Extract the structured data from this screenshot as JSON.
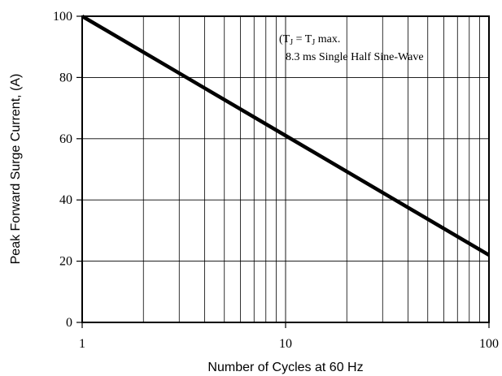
{
  "chart_data": {
    "type": "line",
    "title": "",
    "xlabel": "Number of Cycles at 60 Hz",
    "ylabel": "Peak Forward Surge Current, (A)",
    "x_scale": "log",
    "xlim": [
      1,
      100
    ],
    "ylim": [
      0,
      100
    ],
    "x_ticks": [
      1,
      10,
      100
    ],
    "x_tick_labels": [
      "1",
      "10",
      "100"
    ],
    "y_ticks": [
      0,
      20,
      40,
      60,
      80,
      100
    ],
    "y_tick_labels": [
      "0",
      "20",
      "40",
      "60",
      "80",
      "100"
    ],
    "grid": true,
    "series": [
      {
        "x": [
          1,
          10,
          100
        ],
        "y": [
          100,
          61,
          22
        ]
      }
    ],
    "annotations": {
      "line1_prefix": "(",
      "line1_t1": "T",
      "line1_sub1": "J",
      "line1_mid": " = T",
      "line1_sub2": "J",
      "line1_suffix": " max.",
      "line2": "8.3 ms Single Half Sine-Wave"
    },
    "colors": {
      "line": "#000000",
      "grid": "#000000",
      "background": "#ffffff"
    }
  }
}
